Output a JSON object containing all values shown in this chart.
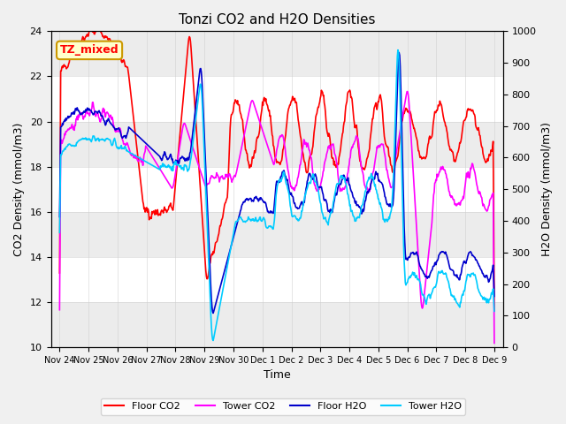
{
  "title": "Tonzi CO2 and H2O Densities",
  "xlabel": "Time",
  "ylabel_left": "CO2 Density (mmol/m3)",
  "ylabel_right": "H2O Density (mmol/m3)",
  "ylim_left": [
    10,
    24
  ],
  "ylim_right": [
    0,
    1000
  ],
  "annotation_text": "TZ_mixed",
  "colors": {
    "floor_co2": "#ff0000",
    "tower_co2": "#ff00ff",
    "floor_h2o": "#0000cc",
    "tower_h2o": "#00ccff"
  },
  "legend_labels": [
    "Floor CO2",
    "Tower CO2",
    "Floor H2O",
    "Tower H2O"
  ],
  "bg_color": "#f0f0f0",
  "plot_bg": "#ffffff",
  "grid_color": "#cccccc",
  "xtick_positions": [
    0,
    1,
    2,
    3,
    4,
    5,
    6,
    7,
    8,
    9,
    10,
    11,
    12,
    13,
    14,
    15
  ],
  "xtick_labels": [
    "Nov 24",
    "Nov 25",
    "Nov 26",
    "Nov 27",
    "Nov 28",
    "Nov 29",
    "Nov 30",
    "Dec 1",
    "Dec 2",
    "Dec 3",
    "Dec 4",
    "Dec 5",
    "Dec 6",
    "Dec 7",
    "Dec 8",
    "Dec 9"
  ]
}
